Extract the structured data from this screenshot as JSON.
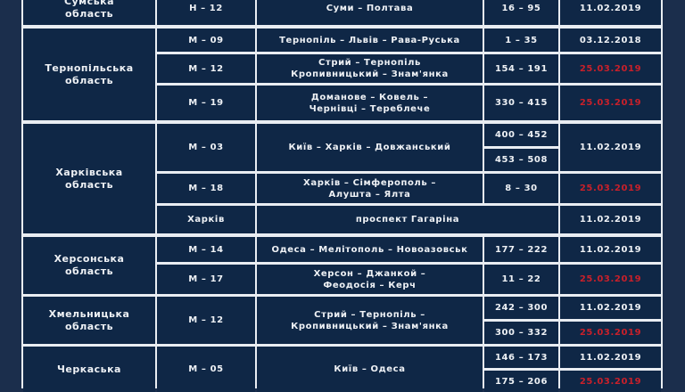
{
  "colors": {
    "background": "#1b2e4c",
    "cell": "#0f2746",
    "text": "#eef1f5",
    "highlight_date": "#c8202a",
    "grid_line": "#e9edf2"
  },
  "regions": [
    {
      "name": "Сумська\nобласть",
      "rows": [
        {
          "road": "Н – 12",
          "route": "Суми – Полтава",
          "km": [
            "16 – 95"
          ],
          "dates": [
            "11.02.2019"
          ]
        }
      ]
    },
    {
      "name": "Тернопільська\nобласть",
      "rows": [
        {
          "road": "М – 09",
          "route": "Тернопіль – Львів – Рава-Руська",
          "km": [
            "1 – 35"
          ],
          "dates": [
            "03.12.2018"
          ]
        },
        {
          "road": "М – 12",
          "route": "Стрий – Тернопіль\nКропивницький – Знам'янка",
          "km": [
            "154 – 191"
          ],
          "dates": [
            "25.03.2019"
          ]
        },
        {
          "road": "М – 19",
          "route": "Доманове – Ковель –\nЧернівці – Тереблече",
          "km": [
            "330 – 415"
          ],
          "dates": [
            "25.03.2019"
          ]
        }
      ]
    },
    {
      "name": "Харківська\nобласть",
      "rows": [
        {
          "road": "М – 03",
          "route": "Київ – Харків – Довжанський",
          "km": [
            "400 – 452",
            "453 – 508"
          ],
          "dates": [
            "11.02.2019"
          ]
        },
        {
          "road": "М – 18",
          "route": "Харків – Сімферополь –\nАлушта – Ялта",
          "km": [
            "8 – 30"
          ],
          "dates": [
            "25.03.2019"
          ]
        },
        {
          "road": "Харків",
          "route": "проспект Гагаріна",
          "km": [],
          "dates": [
            "11.02.2019"
          ]
        }
      ]
    },
    {
      "name": "Херсонська\nобласть",
      "rows": [
        {
          "road": "М – 14",
          "route": "Одеса – Мелітополь – Новоазовськ",
          "km": [
            "177 – 222"
          ],
          "dates": [
            "11.02.2019"
          ]
        },
        {
          "road": "М – 17",
          "route": "Херсон – Джанкой –\nФеодосія – Керч",
          "km": [
            "11 – 22"
          ],
          "dates": [
            "25.03.2019"
          ]
        }
      ]
    },
    {
      "name": "Хмельницька\nобласть",
      "rows": [
        {
          "road": "М – 12",
          "route": "Стрий – Тернопіль –\nКропивницький – Знам'янка",
          "km": [
            "242 – 300",
            "300 – 332"
          ],
          "dates": [
            "11.02.2019",
            "25.03.2019"
          ]
        }
      ]
    },
    {
      "name": "Черкаська",
      "rows": [
        {
          "road": "М – 05",
          "route": "Київ – Одеса",
          "km": [
            "146 – 173",
            "175 – 206"
          ],
          "dates": [
            "11.02.2019",
            "25.03.2019"
          ]
        }
      ]
    }
  ]
}
